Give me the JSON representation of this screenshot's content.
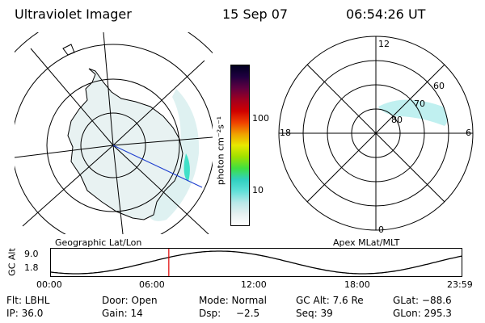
{
  "header": {
    "title": "Ultraviolet Imager",
    "date": "15 Sep 07",
    "time": "06:54:26 UT"
  },
  "geo_panel": {
    "label": "Geographic Lat/Lon"
  },
  "mag_panel": {
    "label": "Apex MLat/MLT",
    "mlt_labels": {
      "top": "12",
      "left": "18",
      "right": "6",
      "bottom": "0"
    },
    "lat_labels": [
      "60",
      "70",
      "80"
    ]
  },
  "colorbar": {
    "unit_label": "photon cm⁻²s⁻¹",
    "ticks": [
      "100",
      "10"
    ],
    "tick_values": [
      100,
      10
    ],
    "scale": "log",
    "colors": [
      "#ffffff",
      "#e6f0f0",
      "#b8e8e8",
      "#60e0d8",
      "#30d0c0",
      "#40e040",
      "#a0e000",
      "#e8e800",
      "#f0a000",
      "#f04000",
      "#d00000",
      "#a00020",
      "#600040",
      "#200040",
      "#000020"
    ]
  },
  "timeline": {
    "ylabel": "GC Alt",
    "y_ticks": [
      "9.0",
      "1.8"
    ],
    "x_ticks": [
      "00:00",
      "06:00",
      "12:00",
      "18:00",
      "23:59"
    ],
    "current_time_hours": 6.91
  },
  "info": {
    "row1": [
      "Flt: LBHL",
      "Door: Open",
      "Mode: Normal",
      "GC Alt: 7.6 Re",
      "GLat: −88.6"
    ],
    "row2": [
      "IP: 36.0",
      "Gain: 14",
      "Dsp:",
      "−2.5",
      "Seq: 39",
      "GLon: 295.3"
    ]
  }
}
